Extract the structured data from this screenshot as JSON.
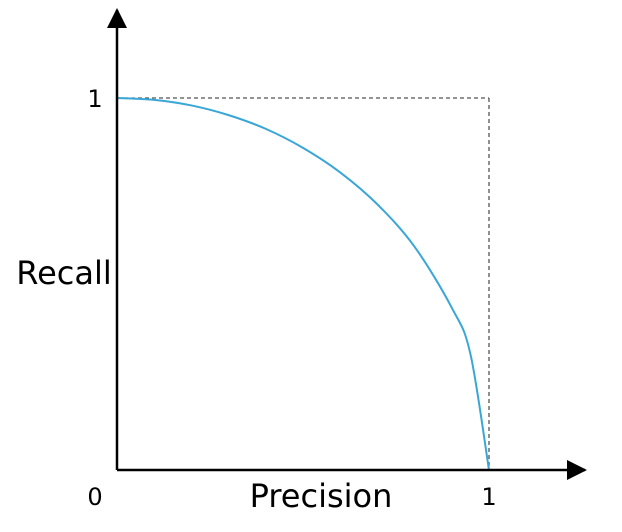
{
  "chart_data": {
    "type": "line",
    "xlabel": "Precision",
    "ylabel": "Recall",
    "xlim": [
      0,
      1
    ],
    "ylim": [
      0,
      1
    ],
    "x_ticks": [
      "0",
      "1"
    ],
    "y_ticks": [
      "1"
    ],
    "grid": false,
    "series": [
      {
        "color": "#3aa6d8",
        "x": [
          0,
          0.1,
          0.2,
          0.3,
          0.4,
          0.5,
          0.6,
          0.7,
          0.8,
          0.9,
          0.95,
          1.0
        ],
        "y": [
          1.0,
          0.995,
          0.98,
          0.954,
          0.917,
          0.866,
          0.8,
          0.714,
          0.6,
          0.436,
          0.312,
          0.0
        ]
      }
    ],
    "reference_lines": [
      {
        "style": "dashed",
        "color": "#555555",
        "x": [
          0,
          1
        ],
        "y": [
          1,
          1
        ]
      },
      {
        "style": "dashed",
        "color": "#555555",
        "x": [
          1,
          1
        ],
        "y": [
          1,
          0
        ]
      }
    ]
  }
}
